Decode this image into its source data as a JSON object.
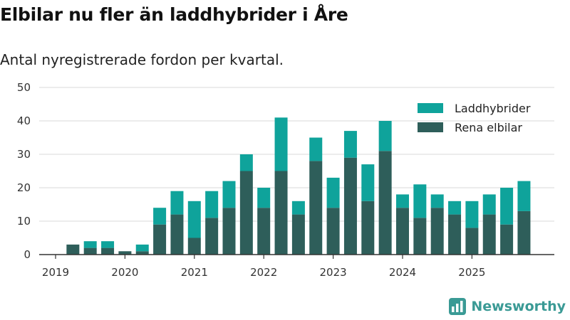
{
  "chart_data": {
    "type": "bar",
    "stacked": true,
    "title": "Elbilar nu fler än laddhybrider i Åre",
    "subtitle": "Antal nyregistrerade fordon per kvartal.",
    "xlabel": "",
    "ylabel": "",
    "ylim": [
      0,
      50
    ],
    "yticks": [
      0,
      10,
      20,
      30,
      40,
      50
    ],
    "xtick_labels": [
      "2019",
      "2020",
      "2021",
      "2022",
      "2023",
      "2024",
      "2025"
    ],
    "grid": true,
    "legend_position": "top-right",
    "categories": [
      "2019 Q1",
      "2019 Q2",
      "2019 Q3",
      "2019 Q4",
      "2020 Q1",
      "2020 Q2",
      "2020 Q3",
      "2020 Q4",
      "2021 Q1",
      "2021 Q2",
      "2021 Q3",
      "2021 Q4",
      "2022 Q1",
      "2022 Q2",
      "2022 Q3",
      "2022 Q4",
      "2023 Q1",
      "2023 Q2",
      "2023 Q3",
      "2023 Q4",
      "2024 Q1",
      "2024 Q2",
      "2024 Q3",
      "2024 Q4",
      "2025 Q1",
      "2025 Q2",
      "2025 Q3",
      "2025 Q4"
    ],
    "series": [
      {
        "name": "Rena elbilar",
        "color": "#2e5e5a",
        "values": [
          0,
          3,
          2,
          2,
          1,
          1,
          9,
          12,
          5,
          11,
          14,
          25,
          14,
          25,
          12,
          28,
          14,
          29,
          16,
          31,
          14,
          11,
          14,
          12,
          8,
          12,
          9,
          13
        ]
      },
      {
        "name": "Laddhybrider",
        "color": "#0fa39b",
        "values": [
          0,
          0,
          2,
          2,
          0,
          2,
          5,
          7,
          11,
          8,
          8,
          5,
          6,
          16,
          4,
          7,
          9,
          8,
          11,
          9,
          4,
          10,
          4,
          4,
          8,
          6,
          11,
          9
        ]
      }
    ]
  },
  "branding": {
    "name": "Newsworthy",
    "color": "#3a9a95"
  }
}
